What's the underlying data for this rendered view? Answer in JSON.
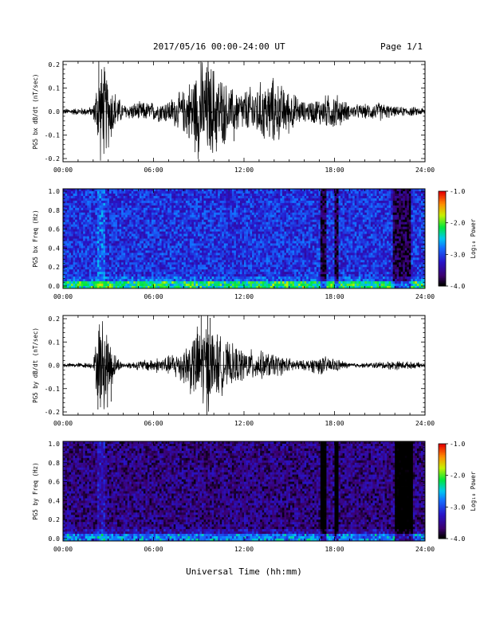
{
  "header": {
    "title": "2017/05/16  00:00-24:00 UT",
    "page": "Page 1/1"
  },
  "x_axis_title": "Universal Time (hh:mm)",
  "colorbar": {
    "label": "Log₁₀ Power",
    "ticks": [
      "-1.0",
      "-2.0",
      "-3.0",
      "-4.0"
    ]
  },
  "chart_data": [
    {
      "type": "line",
      "ylabel": "PG5 bx dB/dt (nT/sec)",
      "xlim": [
        0,
        24
      ],
      "ylim": [
        -0.2,
        0.2
      ],
      "xtick_labels": [
        "00:00",
        "06:00",
        "12:00",
        "18:00",
        "24:00"
      ],
      "ytick_labels": [
        "0.2",
        "0.1",
        "0.0",
        "-0.1",
        "-0.2"
      ],
      "series": [
        {
          "x_hours": [
            0,
            1,
            2,
            2.4,
            2.7,
            3.5,
            4,
            5,
            6,
            7,
            8,
            9,
            9.5,
            10,
            10.5,
            11,
            12,
            13,
            14,
            14.5,
            15,
            16,
            17,
            18,
            19,
            20,
            21,
            22,
            23,
            24
          ],
          "amplitude": [
            0.012,
            0.015,
            0.02,
            0.2,
            0.2,
            0.08,
            0.03,
            0.04,
            0.04,
            0.05,
            0.09,
            0.2,
            0.2,
            0.2,
            0.15,
            0.1,
            0.09,
            0.12,
            0.14,
            0.11,
            0.09,
            0.04,
            0.06,
            0.08,
            0.03,
            0.03,
            0.04,
            0.02,
            0.02,
            0.015
          ]
        }
      ]
    },
    {
      "type": "heatmap",
      "ylabel": "PG5 bx Freq (Hz)",
      "xlim": [
        0,
        24
      ],
      "ylim": [
        0,
        1.0
      ],
      "xtick_labels": [
        "00:00",
        "06:00",
        "12:00",
        "18:00",
        "24:00"
      ],
      "ytick_labels": [
        "1.0",
        "0.8",
        "0.6",
        "0.4",
        "0.2",
        "0.0"
      ],
      "zlim": [
        -4.0,
        -1.0
      ],
      "background_log_power": -3.1,
      "dark_bands_hours": [
        [
          17.1,
          17.5
        ],
        [
          18.0,
          18.3
        ],
        [
          21.9,
          23.0
        ]
      ]
    },
    {
      "type": "line",
      "ylabel": "PG5 by dB/dt (nT/sec)",
      "xlim": [
        0,
        24
      ],
      "ylim": [
        -0.2,
        0.2
      ],
      "xtick_labels": [
        "00:00",
        "06:00",
        "12:00",
        "18:00",
        "24:00"
      ],
      "ytick_labels": [
        "0.2",
        "0.1",
        "0.0",
        "-0.1",
        "-0.2"
      ],
      "series": [
        {
          "x_hours": [
            0,
            1,
            2,
            2.4,
            2.7,
            3.5,
            4,
            5,
            6,
            7,
            8,
            9,
            9.5,
            10,
            10.5,
            11,
            12,
            13,
            14,
            14.5,
            15,
            16,
            17,
            18,
            19,
            20,
            21,
            22,
            23,
            24
          ],
          "amplitude": [
            0.008,
            0.01,
            0.012,
            0.2,
            0.2,
            0.04,
            0.01,
            0.02,
            0.03,
            0.04,
            0.08,
            0.17,
            0.19,
            0.15,
            0.12,
            0.09,
            0.07,
            0.06,
            0.05,
            0.04,
            0.03,
            0.02,
            0.04,
            0.03,
            0.01,
            0.01,
            0.015,
            0.02,
            0.015,
            0.01
          ]
        }
      ]
    },
    {
      "type": "heatmap",
      "ylabel": "PG5 by Freq (Hz)",
      "xlim": [
        0,
        24
      ],
      "ylim": [
        0,
        1.0
      ],
      "xtick_labels": [
        "00:00",
        "06:00",
        "12:00",
        "18:00",
        "24:00"
      ],
      "ytick_labels": [
        "1.0",
        "0.8",
        "0.6",
        "0.4",
        "0.2",
        "0.0"
      ],
      "zlim": [
        -4.0,
        -1.0
      ],
      "background_log_power": -3.6,
      "dark_bands_hours": [
        [
          17.1,
          17.5
        ],
        [
          18.0,
          18.3
        ],
        [
          22.0,
          23.2
        ]
      ]
    }
  ]
}
